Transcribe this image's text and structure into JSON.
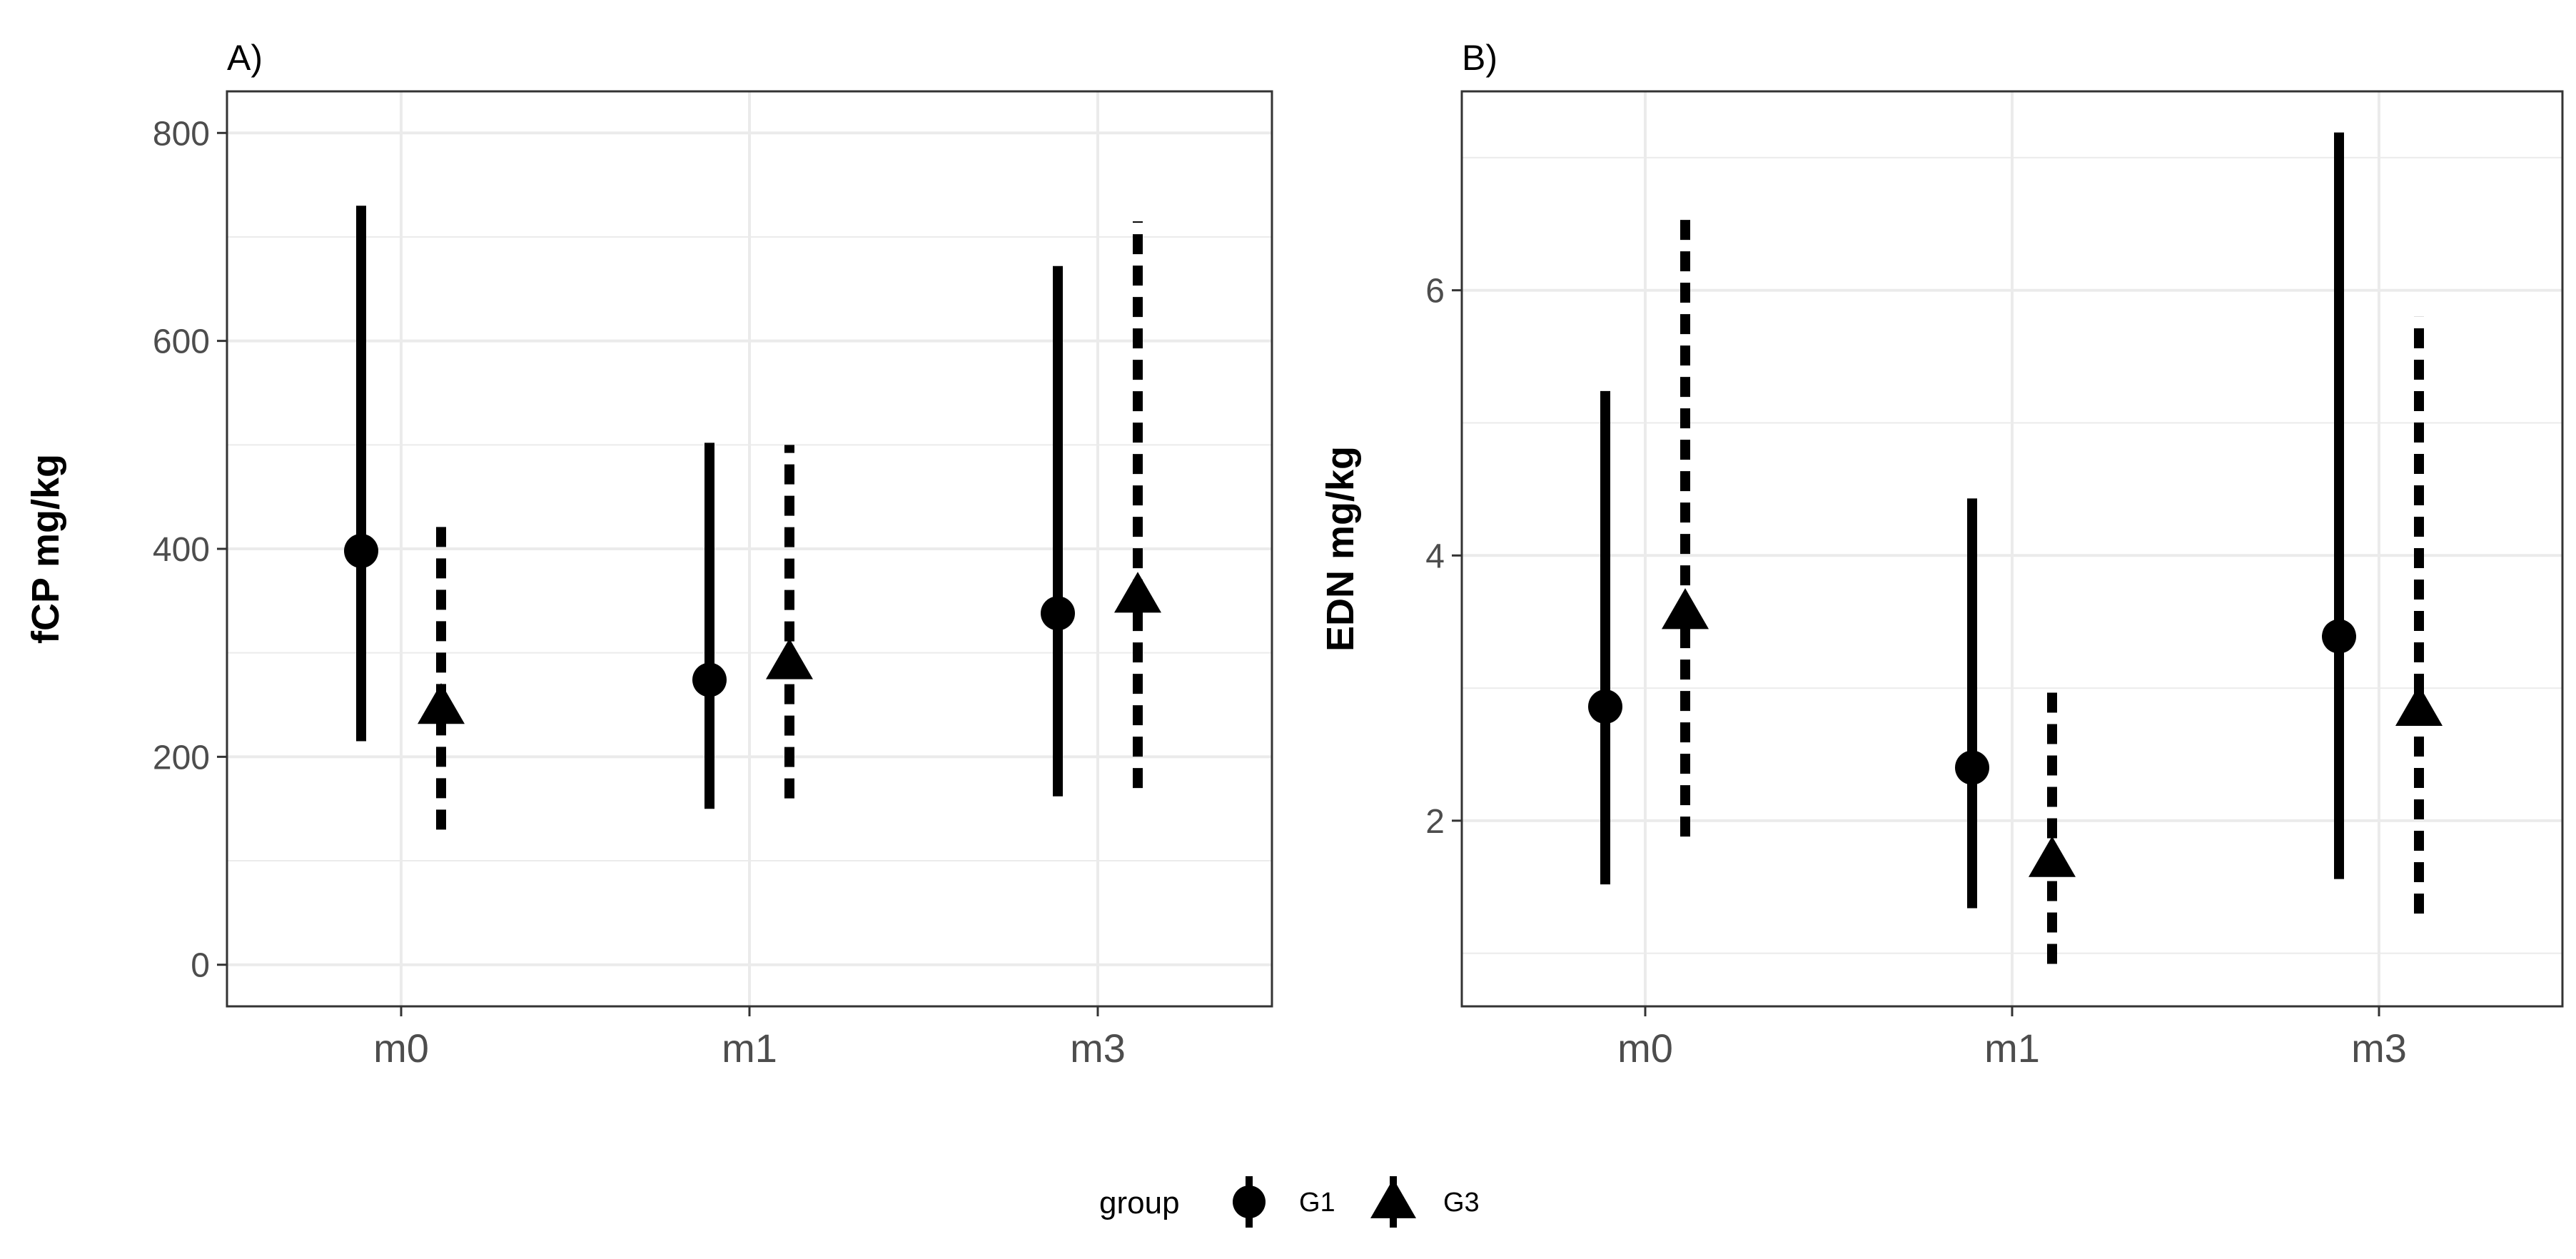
{
  "chart_data": [
    {
      "type": "scatter",
      "subtype": "pointrange",
      "title": "A)",
      "xlabel": "",
      "ylabel": "fCP mg/kg",
      "categories": [
        "m0",
        "m1",
        "m3"
      ],
      "ylim": [
        -40,
        840
      ],
      "yticks": [
        0,
        200,
        400,
        600,
        800
      ],
      "grid": true,
      "series": [
        {
          "name": "G1",
          "marker": "circle",
          "linetype": "solid",
          "points": [
            {
              "x": "m0",
              "y": 398,
              "low": 215,
              "high": 730
            },
            {
              "x": "m1",
              "y": 274,
              "low": 150,
              "high": 502
            },
            {
              "x": "m3",
              "y": 338,
              "low": 162,
              "high": 672
            }
          ]
        },
        {
          "name": "G3",
          "marker": "triangle",
          "linetype": "dashed",
          "points": [
            {
              "x": "m0",
              "y": 245,
              "low": 130,
              "high": 430
            },
            {
              "x": "m1",
              "y": 288,
              "low": 160,
              "high": 500
            },
            {
              "x": "m3",
              "y": 352,
              "low": 170,
              "high": 715
            }
          ]
        }
      ]
    },
    {
      "type": "scatter",
      "subtype": "pointrange",
      "title": "B)",
      "xlabel": "",
      "ylabel": "EDN mg/kg",
      "categories": [
        "m0",
        "m1",
        "m3"
      ],
      "ylim": [
        0.6,
        7.5
      ],
      "yticks": [
        2,
        4,
        6
      ],
      "grid": true,
      "series": [
        {
          "name": "G1",
          "marker": "circle",
          "linetype": "solid",
          "points": [
            {
              "x": "m0",
              "y": 2.86,
              "low": 1.52,
              "high": 5.24
            },
            {
              "x": "m1",
              "y": 2.4,
              "low": 1.34,
              "high": 4.43
            },
            {
              "x": "m3",
              "y": 3.39,
              "low": 1.56,
              "high": 7.19
            }
          ]
        },
        {
          "name": "G3",
          "marker": "triangle",
          "linetype": "dashed",
          "points": [
            {
              "x": "m0",
              "y": 3.55,
              "low": 1.88,
              "high": 6.55
            },
            {
              "x": "m1",
              "y": 1.68,
              "low": 0.92,
              "high": 3.03
            },
            {
              "x": "m3",
              "y": 2.82,
              "low": 1.3,
              "high": 5.8
            }
          ]
        }
      ]
    }
  ],
  "legend": {
    "title": "group",
    "placement": "bottom",
    "items": [
      {
        "label": "G1",
        "marker": "circle"
      },
      {
        "label": "G3",
        "marker": "triangle"
      }
    ]
  },
  "colors": {
    "ink": "#000000",
    "grid": "#ebebeb",
    "tick_text": "#4d4d4d",
    "background": "#ffffff"
  }
}
